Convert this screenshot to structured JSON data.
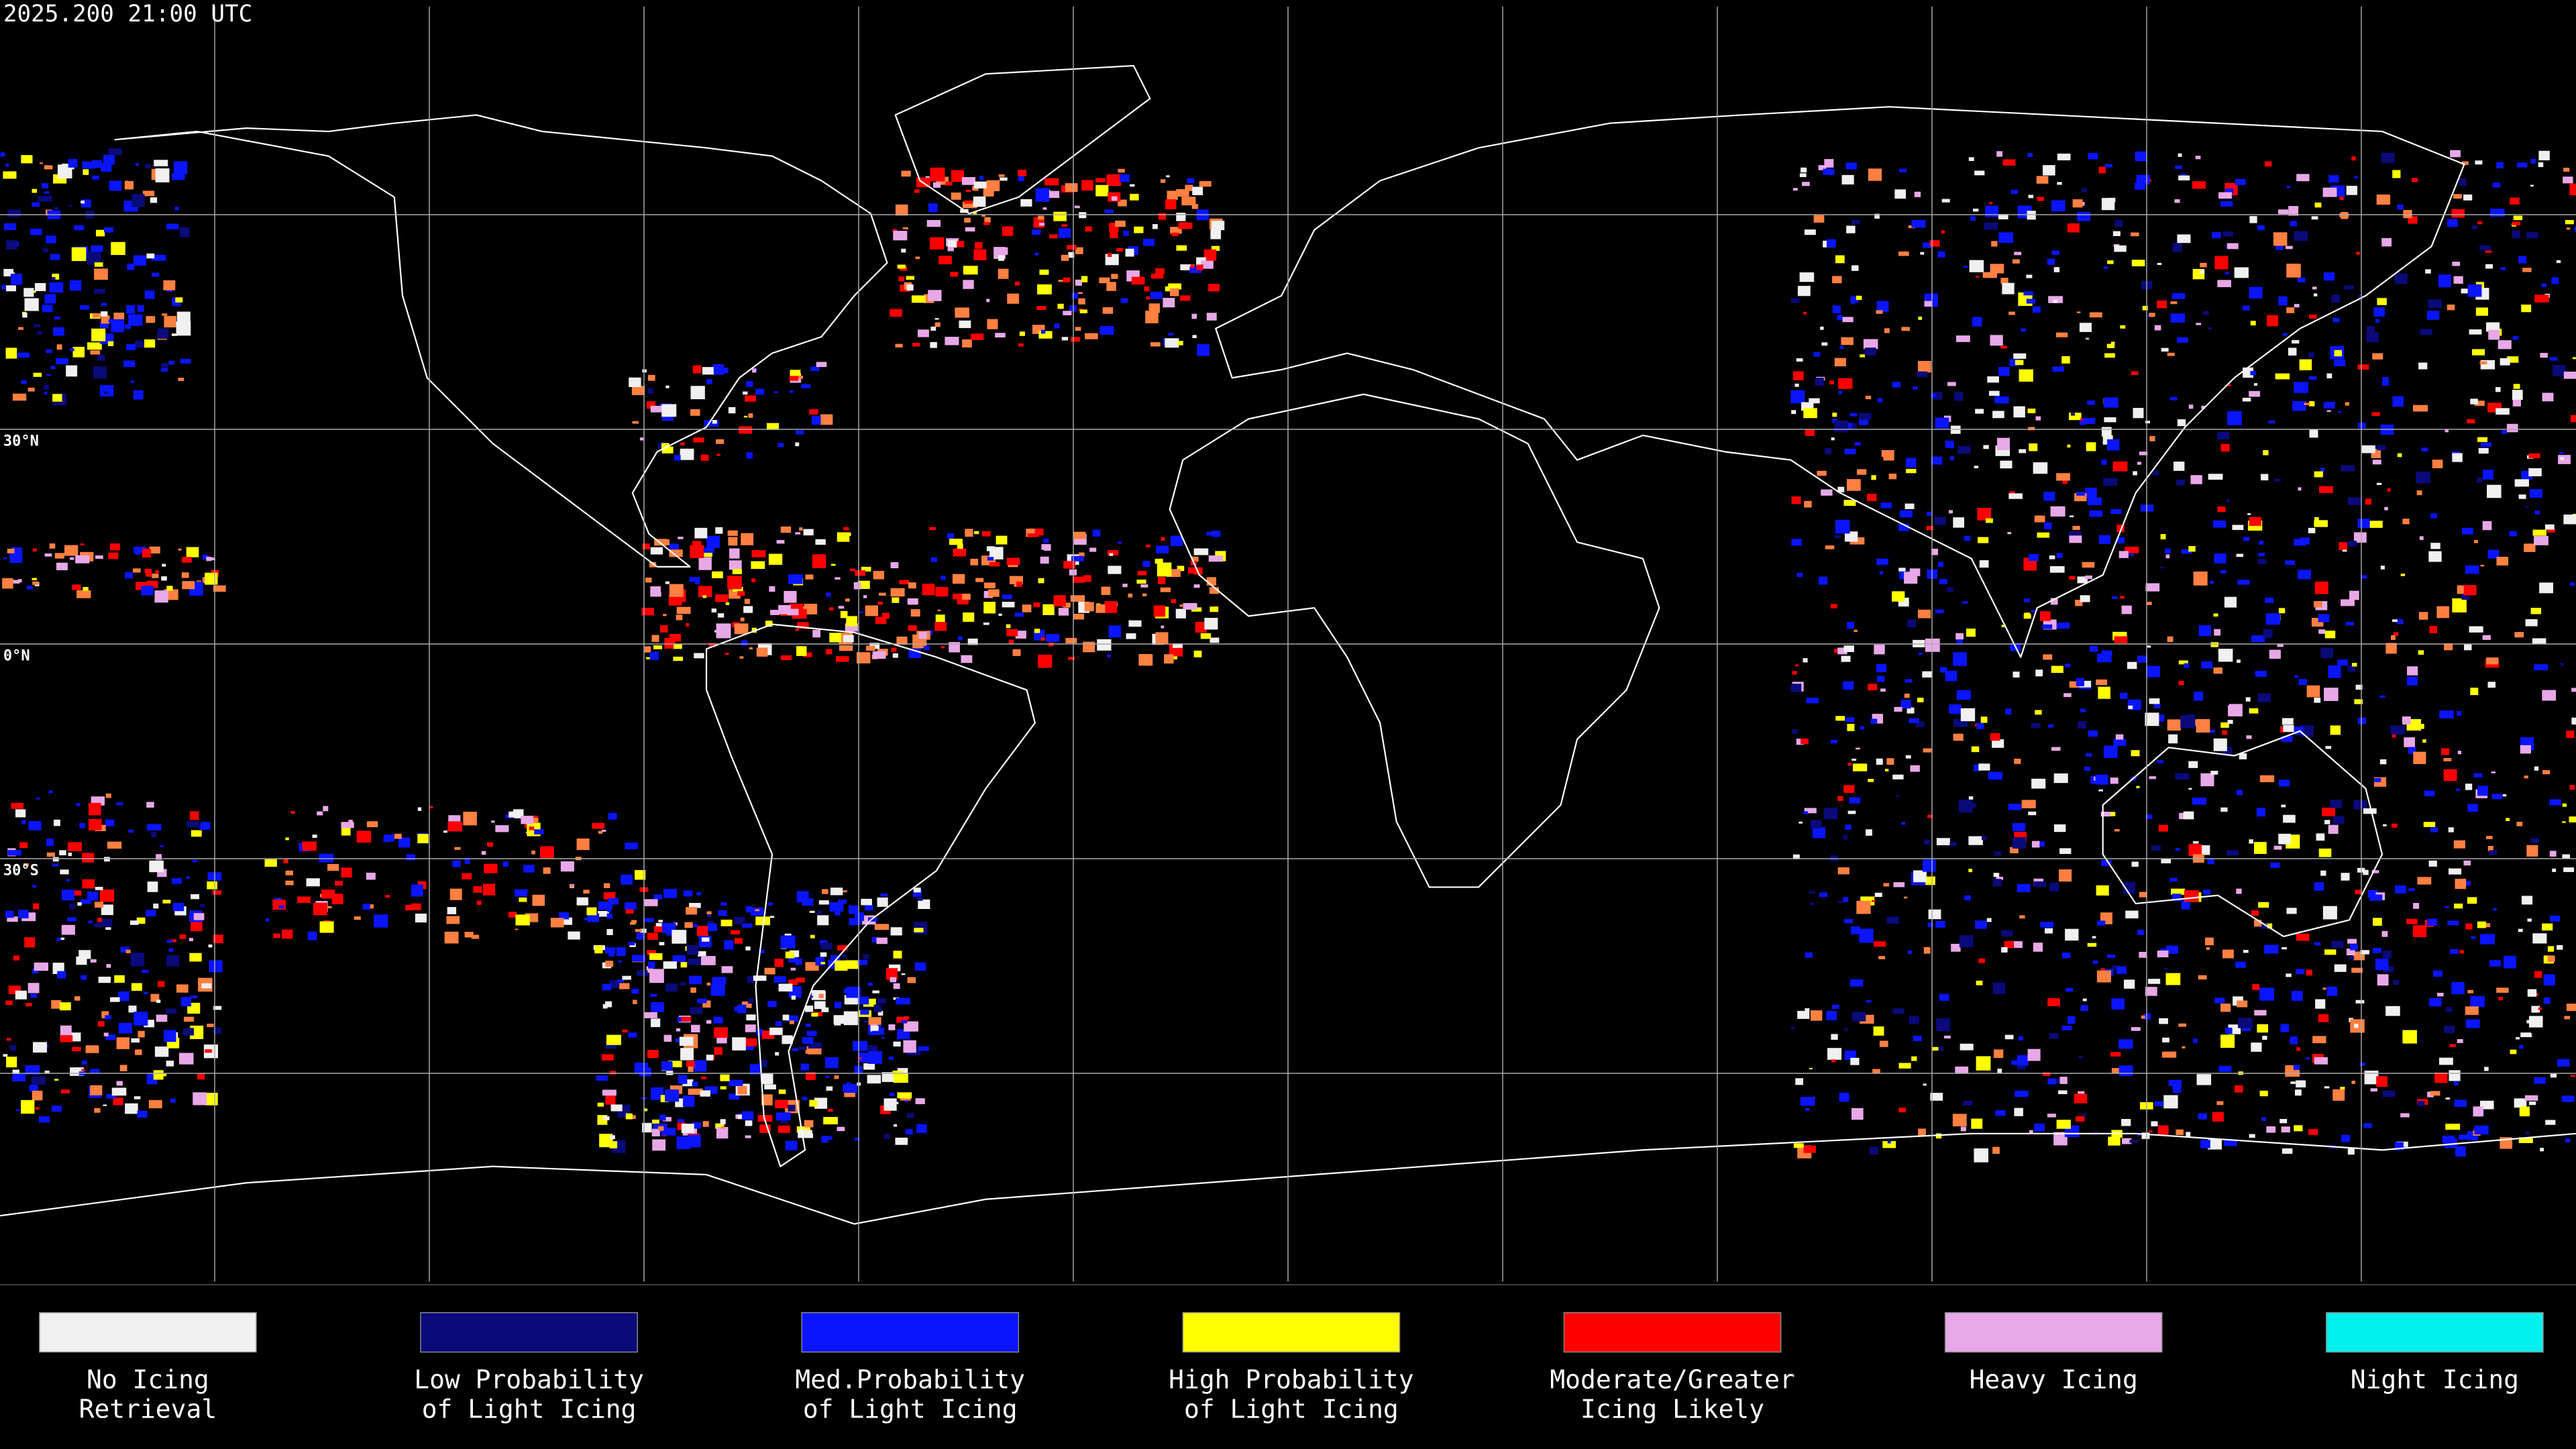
{
  "timestamp": "2025.200 21:00 UTC",
  "lat_labels": [
    "30°N",
    "0°N",
    "30°S"
  ],
  "legend": [
    {
      "lines": [
        "No Icing",
        "Retrieval"
      ],
      "color": "#f0f0f0"
    },
    {
      "lines": [
        "Low Probability",
        "of Light Icing"
      ],
      "color": "#0a0a7a"
    },
    {
      "lines": [
        "Med.Probability",
        "of Light Icing"
      ],
      "color": "#0a14ff"
    },
    {
      "lines": [
        "High Probability",
        "of Light Icing"
      ],
      "color": "#ffff00"
    },
    {
      "lines": [
        "Moderate/Greater",
        "Icing Likely"
      ],
      "color": "#ff0000"
    },
    {
      "lines": [
        "Heavy Icing"
      ],
      "color": "#e8a8e8"
    },
    {
      "lines": [
        "Night Icing"
      ],
      "color": "#00f0f0"
    }
  ]
}
